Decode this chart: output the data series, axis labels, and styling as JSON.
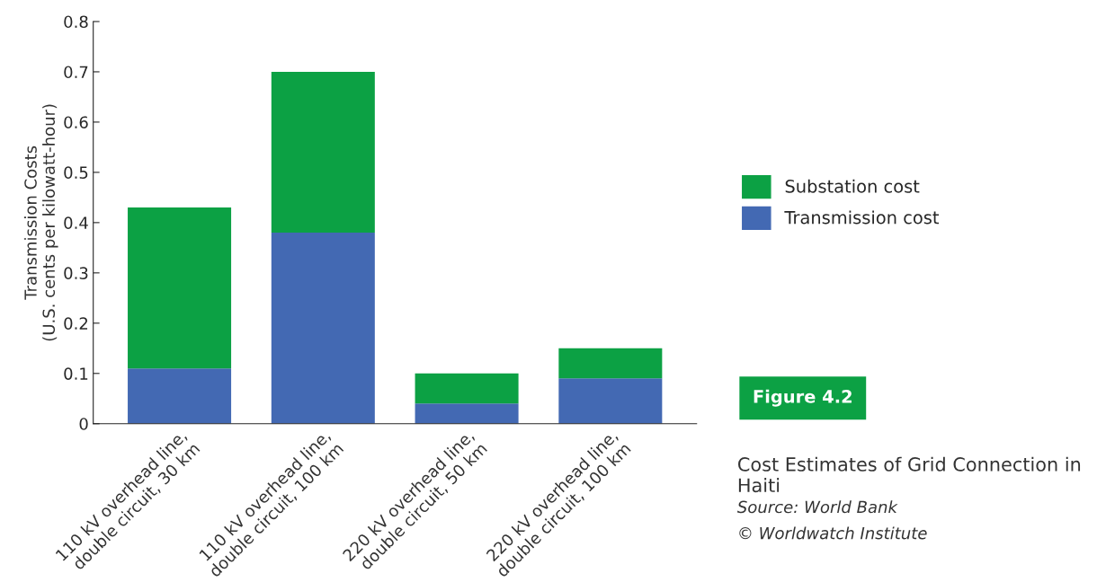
{
  "chart_data": {
    "type": "bar",
    "stacked": true,
    "title": "Cost Estimates of Grid Connection in Haiti",
    "ylabel": "Transmission Costs\n(U.S. cents per kilowatt-hour)",
    "categories": [
      "110 kV overhead line,\ndouble circuit, 30 km",
      "110 kV overhead line,\ndouble circuit, 100 km",
      "220 kV overhead line,\ndouble circuit, 50 km",
      "220 kV overhead line,\ndouble circuit, 100 km"
    ],
    "series": [
      {
        "name": "Transmission cost",
        "color": "#4369b3",
        "values": [
          0.11,
          0.38,
          0.04,
          0.09
        ]
      },
      {
        "name": "Substation cost",
        "color": "#0ca144",
        "values": [
          0.32,
          0.32,
          0.06,
          0.06
        ]
      }
    ],
    "ylim": [
      0,
      0.8
    ],
    "yticks": [
      0,
      0.1,
      0.2,
      0.3,
      0.4,
      0.5,
      0.6,
      0.7,
      0.8
    ],
    "grid": false,
    "legend": "right",
    "annotations": [
      "Figure 4.2",
      "Source: World Bank",
      "© Worldwatch Institute"
    ]
  }
}
